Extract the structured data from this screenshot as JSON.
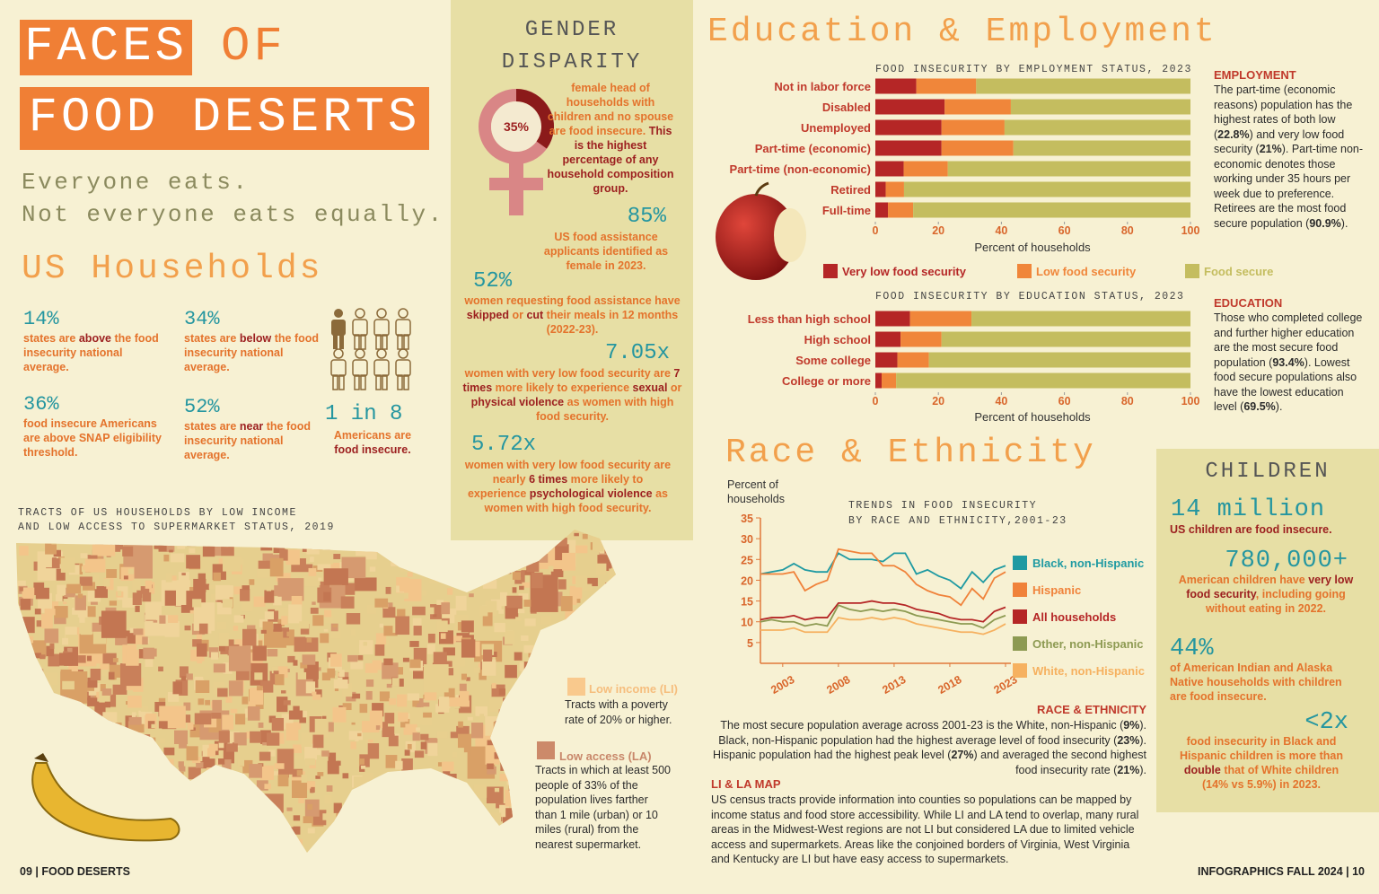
{
  "title": {
    "line1a": "FACES",
    "line1b": "OF",
    "line2": "FOOD DESERTS"
  },
  "tagline": [
    "Everyone eats.",
    "Not everyone eats equally."
  ],
  "us_households": {
    "heading": "US Households",
    "stats": [
      {
        "value": "14%",
        "text": [
          "states are ",
          "above",
          " the food insecurity national average."
        ]
      },
      {
        "value": "34%",
        "text": [
          "states are ",
          "below",
          " the food insecurity national average."
        ]
      },
      {
        "value": "36%",
        "text": [
          "food insecure Americans are above SNAP eligibility threshold."
        ]
      },
      {
        "value": "52%",
        "text": [
          "states are ",
          "near",
          " the food insecurity national average."
        ]
      }
    ],
    "ratio": {
      "value": "1 in 8",
      "text": [
        "Americans are ",
        "food insecure."
      ]
    }
  },
  "map": {
    "title": [
      "TRACTS OF US HOUSEHOLDS BY LOW INCOME",
      "AND LOW ACCESS TO SUPERMARKET STATUS, 2019"
    ],
    "legend": [
      {
        "label": "Low income (LI)",
        "text": "Tracts with a poverty rate of 20% or higher."
      },
      {
        "label": "Low access (LA)",
        "text": "Tracts in which at least 500 people of 33% of the population lives farther than 1 mile (urban) or 10 miles (rural) from the nearest supermarket."
      }
    ]
  },
  "gender": {
    "heading": [
      "GENDER",
      "DISPARITY"
    ],
    "donut": {
      "value": 35,
      "label": "35%"
    },
    "donut_text": [
      "female head of households with children and no spouse are food insecure. ",
      "This is the highest percentage of any household composition group."
    ],
    "stats": [
      {
        "value": "85%",
        "text": [
          "US food assistance applicants identified as female in 2023."
        ]
      },
      {
        "value": "52%",
        "text": [
          "women requesting food assistance have ",
          "skipped",
          " or ",
          "cut",
          " their meals in 12 months (2022-23)."
        ]
      },
      {
        "value": "7.05x",
        "text": [
          "women with very low food security are ",
          "7 times",
          " more likely to experience ",
          "sexual",
          " or ",
          "physical violence",
          " as women with high food security."
        ]
      },
      {
        "value": "5.72x",
        "text": [
          "women with very low food security are nearly ",
          "6 times",
          " more likely to experience ",
          "psychological violence",
          " as women with high food security."
        ]
      }
    ]
  },
  "education_employment": {
    "heading": "Education & Employment",
    "employment": {
      "heading": "EMPLOYMENT",
      "text": [
        "The part-time (economic reasons) population has the highest rates of both low (",
        "22.8%",
        ") and very low food security (",
        "21%",
        "). Part-time non-economic denotes those working under 35 hours per week due to preference.  Retirees are the most food secure population (",
        "90.9%",
        ")."
      ]
    },
    "education": {
      "heading": "EDUCATION",
      "text": [
        "Those who completed college and further higher education are the most secure food population (",
        "93.4%",
        "). Lowest food secure populations also have the lowest education level (",
        "69.5%",
        ")."
      ]
    }
  },
  "race": {
    "heading": "Race & Ethnicity",
    "notes_heading": "RACE & ETHNICITY",
    "notes": [
      "The most secure population average across 2001-23 is the White, non-Hispanic (",
      "9%",
      "). Black, non-Hispanic population had the highest average level of food insecurity (",
      "23%",
      "). Hispanic population had the highest peak level (",
      "27%",
      ") and averaged the second highest food insecurity rate (",
      "21%",
      ")."
    ],
    "map_heading": "LI & LA MAP",
    "map_notes": "US census tracts provide information into counties so populations can be mapped by income status and food store accessibility. While LI and LA tend to overlap, many rural areas in the Midwest-West regions are not LI but considered LA due to limited vehicle access and supermarkets. Areas like the conjoined borders of Virginia, West Virginia and Kentucky are LI but have easy access to supermarkets."
  },
  "children": {
    "heading": "CHILDREN",
    "stats": [
      {
        "value": "14 million",
        "text": [
          "",
          "US children are food insecure."
        ]
      },
      {
        "value": "780,000+",
        "text": [
          "American children have ",
          "very low food security",
          ", including going without eating in 2022."
        ]
      },
      {
        "value": "44%",
        "text": [
          "of American Indian and Alaska Native households with children are food insecure."
        ]
      },
      {
        "value": "<2x",
        "text": [
          "food insecurity in Black and Hispanic children is more than ",
          "double",
          " that of White children (14% vs 5.9%) in 2023."
        ]
      }
    ]
  },
  "footer": {
    "left": "09 | FOOD DESERTS",
    "right": "INFOGRAPHICS FALL 2024 | 10"
  },
  "chart_data": [
    {
      "type": "bar",
      "orientation": "horizontal",
      "stacked": true,
      "title": "FOOD INSECURITY BY EMPLOYMENT STATUS, 2023",
      "categories": [
        "Not in labor force",
        "Disabled",
        "Unemployed",
        "Part-time (economic)",
        "Part-time (non-economic)",
        "Retired",
        "Full-time"
      ],
      "series": [
        {
          "name": "Very low food security",
          "color": "#b52626",
          "values": [
            13,
            22,
            21,
            21,
            9,
            3.3,
            4
          ]
        },
        {
          "name": "Low food security",
          "color": "#f0863a",
          "values": [
            19,
            21,
            20,
            22.8,
            14,
            5.8,
            8
          ]
        },
        {
          "name": "Food secure",
          "color": "#c4bd5f",
          "values": [
            68,
            57,
            59,
            56.2,
            77,
            90.9,
            88
          ]
        }
      ],
      "xlim": [
        0,
        100
      ],
      "xticks": [
        0,
        20,
        40,
        60,
        80,
        100
      ],
      "xlabel": "Percent of households"
    },
    {
      "type": "bar",
      "orientation": "horizontal",
      "stacked": true,
      "title": "FOOD INSECURITY BY EDUCATION STATUS, 2023",
      "categories": [
        "Less than high school",
        "High school",
        "Some college",
        "College or more"
      ],
      "series": [
        {
          "color": "#b52626",
          "values": [
            11,
            8,
            7,
            2
          ]
        },
        {
          "color": "#f0863a",
          "values": [
            19.5,
            13,
            10,
            4.6
          ]
        },
        {
          "color": "#c4bd5f",
          "values": [
            69.5,
            79,
            83,
            93.4
          ]
        }
      ],
      "xlim": [
        0,
        100
      ],
      "xticks": [
        0,
        20,
        40,
        60,
        80,
        100
      ],
      "xlabel": "Percent of households"
    },
    {
      "type": "line",
      "title": [
        "TRENDS IN FOOD INSECURITY",
        "BY RACE AND ETHNICITY,2001-23"
      ],
      "ylabel": "Percent of households",
      "x": [
        2001,
        2002,
        2003,
        2004,
        2005,
        2006,
        2007,
        2008,
        2009,
        2010,
        2011,
        2012,
        2013,
        2014,
        2015,
        2016,
        2017,
        2018,
        2019,
        2020,
        2021,
        2022,
        2023
      ],
      "series": [
        {
          "name": "Black, non-Hispanic",
          "color": "#1f9aa2",
          "values": [
            21.5,
            22,
            22.5,
            24,
            22.5,
            22,
            22,
            26.5,
            25,
            25,
            25,
            24.5,
            26.5,
            26.5,
            21.5,
            22.5,
            21,
            20,
            18,
            22,
            19.5,
            22.5,
            23.5
          ]
        },
        {
          "name": "Hispanic",
          "color": "#f0823a",
          "values": [
            21.5,
            21.5,
            21.5,
            22,
            17.5,
            19,
            20,
            27.5,
            27,
            26.5,
            26.5,
            23.5,
            23.5,
            22,
            19,
            17.5,
            16.5,
            16,
            14,
            18,
            15.5,
            20.5,
            22
          ]
        },
        {
          "name": "All households",
          "color": "#b52626",
          "values": [
            10.5,
            11,
            11,
            11.5,
            10.5,
            11,
            11,
            14.5,
            14.5,
            14.5,
            15,
            14.5,
            14.5,
            14,
            13,
            12.5,
            12,
            11,
            10.5,
            10.5,
            10,
            12.5,
            13.5
          ]
        },
        {
          "name": "Other, non-Hispanic",
          "color": "#8d9a52",
          "values": [
            10,
            10.5,
            10,
            10,
            9,
            9.5,
            9,
            14,
            13,
            12.5,
            13,
            12.5,
            13,
            12.5,
            11.5,
            11,
            10.5,
            10,
            9.5,
            9.5,
            8.5,
            10.5,
            11.5
          ]
        },
        {
          "name": "White, non-Hispanic",
          "color": "#f6b160",
          "values": [
            8,
            8,
            8,
            8.5,
            7.5,
            7.5,
            7.5,
            11,
            10.5,
            10.5,
            11,
            10.5,
            11,
            10.5,
            9.5,
            9,
            8.5,
            8,
            7.5,
            7.5,
            7,
            8,
            9.5
          ]
        }
      ],
      "xlim": [
        2001,
        2023
      ],
      "xticks": [
        2003,
        2008,
        2013,
        2018,
        2023
      ],
      "ylim": [
        0,
        35
      ],
      "yticks": [
        5,
        10,
        15,
        20,
        25,
        30,
        35
      ]
    }
  ]
}
